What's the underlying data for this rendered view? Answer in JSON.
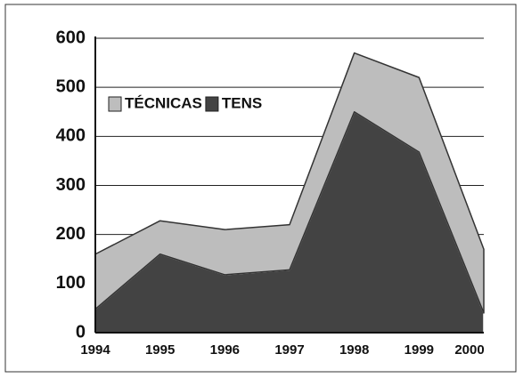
{
  "chart_data": {
    "type": "stacked-area",
    "categories": [
      "1994",
      "1995",
      "1996",
      "1997",
      "1998",
      "1999",
      "2000"
    ],
    "series": [
      {
        "name": "TÉCNICAS",
        "color": "#bdbdbd",
        "values": [
          112,
          68,
          92,
          92,
          120,
          152,
          130
        ]
      },
      {
        "name": "TENS",
        "color": "#434343",
        "values": [
          48,
          160,
          118,
          128,
          450,
          368,
          40
        ]
      }
    ],
    "ylim": [
      0,
      600
    ],
    "yticks": [
      0,
      100,
      200,
      300,
      400,
      500,
      600
    ],
    "grid": true,
    "legend": "top-left"
  }
}
